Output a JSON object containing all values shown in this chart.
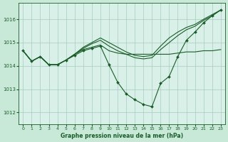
{
  "background_color": "#c8e8d8",
  "plot_bg_color": "#d8f0e8",
  "grid_color": "#a8ccc0",
  "line_color": "#1a5c28",
  "xlabel": "Graphe pression niveau de la mer (hPa)",
  "xlim": [
    -0.5,
    23.5
  ],
  "ylim": [
    1011.5,
    1016.7
  ],
  "yticks": [
    1012,
    1013,
    1014,
    1015,
    1016
  ],
  "xticks": [
    0,
    1,
    2,
    3,
    4,
    5,
    6,
    7,
    8,
    9,
    10,
    11,
    12,
    13,
    14,
    15,
    16,
    17,
    18,
    19,
    20,
    21,
    22,
    23
  ],
  "series_dip": {
    "x": [
      0,
      1,
      2,
      3,
      4,
      5,
      6,
      7,
      8,
      9,
      10,
      11,
      12,
      13,
      14,
      15,
      16,
      17,
      18,
      19,
      20,
      21,
      22,
      23
    ],
    "y": [
      1014.65,
      1014.2,
      1014.4,
      1014.05,
      1014.05,
      1014.25,
      1014.45,
      1014.65,
      1014.75,
      1014.85,
      1014.05,
      1013.3,
      1012.8,
      1012.55,
      1012.35,
      1012.25,
      1013.25,
      1013.55,
      1014.4,
      1015.1,
      1015.45,
      1015.85,
      1016.15,
      1016.4
    ]
  },
  "series_flat": {
    "x": [
      0,
      1,
      2,
      3,
      4,
      5,
      6,
      7,
      8,
      9,
      10,
      11,
      12,
      13,
      14,
      15,
      16,
      17,
      18,
      19,
      20,
      21,
      22,
      23
    ],
    "y": [
      1014.65,
      1014.2,
      1014.4,
      1014.05,
      1014.05,
      1014.25,
      1014.5,
      1014.7,
      1014.8,
      1014.9,
      1014.65,
      1014.55,
      1014.5,
      1014.5,
      1014.5,
      1014.5,
      1014.5,
      1014.5,
      1014.55,
      1014.6,
      1014.6,
      1014.65,
      1014.65,
      1014.7
    ]
  },
  "series_rise1": {
    "x": [
      0,
      1,
      2,
      3,
      4,
      5,
      6,
      7,
      8,
      9,
      10,
      11,
      12,
      13,
      14,
      15,
      16,
      17,
      18,
      19,
      20,
      21,
      22,
      23
    ],
    "y": [
      1014.65,
      1014.2,
      1014.4,
      1014.05,
      1014.05,
      1014.25,
      1014.5,
      1014.75,
      1014.95,
      1015.1,
      1014.85,
      1014.65,
      1014.5,
      1014.35,
      1014.3,
      1014.35,
      1014.7,
      1015.0,
      1015.3,
      1015.55,
      1015.7,
      1015.95,
      1016.15,
      1016.4
    ]
  },
  "series_rise2": {
    "x": [
      0,
      1,
      2,
      3,
      4,
      5,
      6,
      7,
      8,
      9,
      10,
      11,
      12,
      13,
      14,
      15,
      16,
      17,
      18,
      19,
      20,
      21,
      22,
      23
    ],
    "y": [
      1014.65,
      1014.2,
      1014.4,
      1014.05,
      1014.05,
      1014.25,
      1014.5,
      1014.8,
      1015.0,
      1015.2,
      1015.0,
      1014.8,
      1014.6,
      1014.45,
      1014.4,
      1014.45,
      1014.85,
      1015.2,
      1015.45,
      1015.65,
      1015.78,
      1016.0,
      1016.2,
      1016.4
    ]
  }
}
